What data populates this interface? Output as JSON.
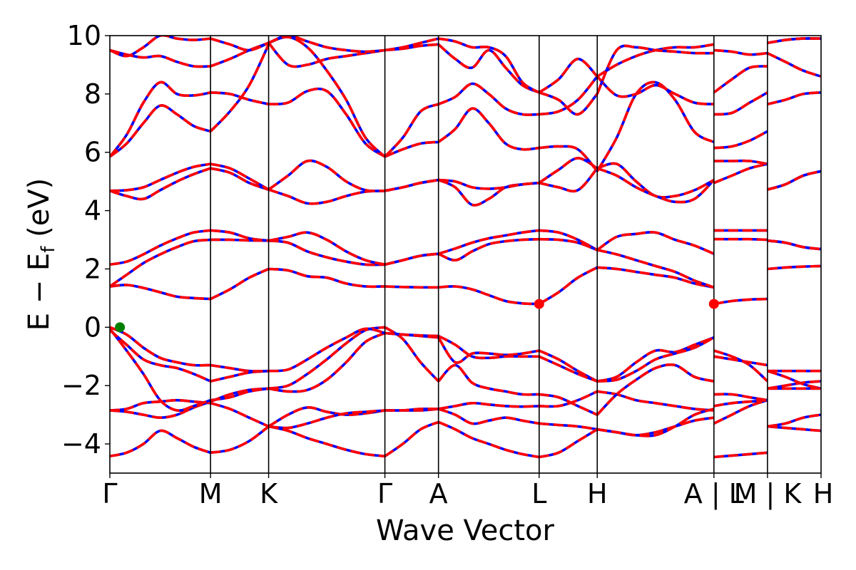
{
  "chart_data": {
    "type": "line",
    "title": "",
    "xlabel": "Wave Vector",
    "ylabel": "E − E_f (eV)",
    "ylabel_parts": {
      "main": "E − E",
      "sub": "f",
      "unit": " (eV)"
    },
    "ylim": [
      -5,
      10
    ],
    "yticks": [
      {
        "value": 10,
        "label": "10"
      },
      {
        "value": 8,
        "label": "8"
      },
      {
        "value": 6,
        "label": "6"
      },
      {
        "value": 4,
        "label": "4"
      },
      {
        "value": 2,
        "label": "2"
      },
      {
        "value": 0,
        "label": "0"
      },
      {
        "value": -2,
        "label": "−2"
      },
      {
        "value": -4,
        "label": "−4"
      }
    ],
    "kpoints": [
      {
        "label": "Γ",
        "k": 0.0
      },
      {
        "label": "M",
        "k": 1.0
      },
      {
        "label": "K",
        "k": 1.577
      },
      {
        "label": "Γ",
        "k": 2.732
      },
      {
        "label": "A",
        "k": 3.264
      },
      {
        "label": "L",
        "k": 4.264
      },
      {
        "label": "H",
        "k": 4.841
      },
      {
        "label": "A | L",
        "k": 6.0
      },
      {
        "label": "M | K",
        "k": 6.532
      },
      {
        "label": "H",
        "k": 7.064
      }
    ],
    "xlim": [
      0,
      7.064
    ],
    "series_colors": {
      "dft": "#0000ff",
      "interp": "#ff0000"
    },
    "series_style": {
      "dft": "solid",
      "interp": "dashed"
    },
    "segments": [
      {
        "k0": 0.0,
        "k1": 1.0,
        "bands": [
          [
            -4.42,
            -4.3,
            -4.0,
            -3.55,
            -3.8,
            -4.1,
            -4.3
          ],
          [
            -2.85,
            -2.8,
            -2.6,
            -2.55,
            -2.5,
            -2.55,
            -2.6
          ],
          [
            -2.85,
            -2.9,
            -3.0,
            -3.1,
            -3.0,
            -2.75,
            -2.55
          ],
          [
            -0.05,
            -0.8,
            -1.6,
            -2.5,
            -2.85,
            -2.7,
            -2.5
          ],
          [
            -0.1,
            -0.6,
            -1.1,
            -1.3,
            -1.4,
            -1.6,
            -1.85
          ],
          [
            0.0,
            -0.25,
            -0.7,
            -1.05,
            -1.2,
            -1.3,
            -1.3
          ],
          [
            1.4,
            1.45,
            1.35,
            1.2,
            1.05,
            1.0,
            0.97
          ],
          [
            1.4,
            1.8,
            2.2,
            2.5,
            2.75,
            2.95,
            3.0
          ],
          [
            2.15,
            2.25,
            2.5,
            2.8,
            3.05,
            3.25,
            3.32
          ],
          [
            4.68,
            4.5,
            4.4,
            4.7,
            5.0,
            5.25,
            5.45
          ],
          [
            4.68,
            4.7,
            4.8,
            5.05,
            5.3,
            5.5,
            5.6
          ],
          [
            5.85,
            6.3,
            7.0,
            7.6,
            7.3,
            6.9,
            6.72
          ],
          [
            5.85,
            6.6,
            7.7,
            8.4,
            8.0,
            7.95,
            8.05
          ],
          [
            9.5,
            9.35,
            9.25,
            9.3,
            9.1,
            8.95,
            8.95
          ],
          [
            9.5,
            9.3,
            9.6,
            10.0,
            9.9,
            9.85,
            9.9
          ]
        ]
      },
      {
        "k0": 1.0,
        "k1": 1.577,
        "bands": [
          [
            -4.3,
            -4.2,
            -3.9,
            -3.4
          ],
          [
            -2.6,
            -2.8,
            -3.1,
            -3.4
          ],
          [
            -2.55,
            -2.3,
            -2.15,
            -2.1
          ],
          [
            -2.5,
            -2.4,
            -2.2,
            -2.1
          ],
          [
            -1.85,
            -1.7,
            -1.55,
            -1.5
          ],
          [
            -1.3,
            -1.4,
            -1.5,
            -1.5
          ],
          [
            0.97,
            1.3,
            1.7,
            2.0
          ],
          [
            3.0,
            3.0,
            2.98,
            2.97
          ],
          [
            3.32,
            3.25,
            3.05,
            2.97
          ],
          [
            5.45,
            5.3,
            4.95,
            4.72
          ],
          [
            5.6,
            5.45,
            5.1,
            4.72
          ],
          [
            6.72,
            7.4,
            8.3,
            9.7
          ],
          [
            8.05,
            8.0,
            7.8,
            7.65
          ],
          [
            8.95,
            9.2,
            9.5,
            9.75
          ],
          [
            9.9,
            9.7,
            9.5,
            9.75
          ]
        ]
      },
      {
        "k0": 1.577,
        "k1": 2.732,
        "bands": [
          [
            -3.4,
            -3.55,
            -3.8,
            -4.0,
            -4.2,
            -4.35,
            -4.42
          ],
          [
            -3.4,
            -3.0,
            -2.75,
            -2.9,
            -3.0,
            -2.95,
            -2.85
          ],
          [
            -3.4,
            -3.45,
            -3.3,
            -3.1,
            -2.95,
            -2.9,
            -2.85
          ],
          [
            -2.1,
            -2.2,
            -2.15,
            -1.8,
            -1.2,
            -0.5,
            -0.2
          ],
          [
            -2.1,
            -2.0,
            -1.6,
            -1.1,
            -0.55,
            -0.1,
            0.0
          ],
          [
            -1.5,
            -1.45,
            -1.1,
            -0.7,
            -0.35,
            -0.05,
            -0.2
          ],
          [
            2.0,
            1.95,
            1.75,
            1.7,
            1.5,
            1.4,
            1.4
          ],
          [
            2.97,
            2.9,
            2.6,
            2.4,
            2.25,
            2.15,
            2.15
          ],
          [
            2.97,
            3.1,
            3.25,
            3.0,
            2.6,
            2.3,
            2.15
          ],
          [
            4.72,
            4.5,
            4.25,
            4.3,
            4.5,
            4.65,
            4.68
          ],
          [
            4.72,
            5.2,
            5.7,
            5.5,
            5.0,
            4.7,
            4.68
          ],
          [
            7.65,
            7.7,
            8.1,
            8.1,
            7.3,
            6.3,
            5.85
          ],
          [
            9.75,
            9.95,
            9.6,
            8.8,
            7.8,
            6.5,
            5.85
          ],
          [
            9.75,
            9.0,
            9.0,
            9.2,
            9.3,
            9.4,
            9.5
          ],
          [
            9.75,
            10.0,
            9.8,
            9.6,
            9.5,
            9.45,
            9.5
          ]
        ]
      },
      {
        "k0": 2.732,
        "k1": 3.264,
        "bands": [
          [
            -2.85,
            -2.85,
            -2.85,
            -2.8
          ],
          [
            -2.85,
            -2.85,
            -2.8,
            -2.8
          ],
          [
            -4.42,
            -4.0,
            -3.5,
            -3.25
          ],
          [
            -0.2,
            -0.25,
            -0.3,
            -0.35
          ],
          [
            0.0,
            -0.4,
            -1.2,
            -1.85
          ],
          [
            -0.2,
            -0.25,
            -0.28,
            -0.3
          ],
          [
            1.4,
            1.38,
            1.37,
            1.37
          ],
          [
            2.15,
            2.3,
            2.45,
            2.52
          ],
          [
            2.15,
            2.3,
            2.45,
            2.52
          ],
          [
            4.68,
            4.8,
            4.95,
            5.05
          ],
          [
            4.68,
            4.8,
            4.95,
            5.05
          ],
          [
            5.85,
            6.1,
            6.3,
            6.35
          ],
          [
            5.85,
            6.5,
            7.4,
            7.65
          ],
          [
            9.5,
            9.55,
            9.65,
            9.7
          ],
          [
            9.5,
            9.6,
            9.75,
            9.9
          ]
        ]
      },
      {
        "k0": 3.264,
        "k1": 4.264,
        "bands": [
          [
            -2.8,
            -2.7,
            -2.6,
            -2.65,
            -2.7,
            -2.72,
            -2.7
          ],
          [
            -2.8,
            -3.0,
            -3.3,
            -3.2,
            -3.1,
            -3.2,
            -3.3
          ],
          [
            -3.25,
            -3.5,
            -3.8,
            -4.0,
            -4.2,
            -4.35,
            -4.45
          ],
          [
            -0.35,
            -1.2,
            -0.9,
            -0.9,
            -0.95,
            -0.9,
            -0.8
          ],
          [
            -1.85,
            -1.3,
            -1.9,
            -2.1,
            -2.2,
            -2.3,
            -2.3
          ],
          [
            -0.3,
            -0.6,
            -1.0,
            -1.05,
            -1.0,
            -1.0,
            -1.0
          ],
          [
            1.37,
            1.4,
            1.3,
            1.1,
            0.9,
            0.82,
            0.8
          ],
          [
            2.52,
            2.7,
            2.9,
            3.05,
            3.15,
            3.25,
            3.32
          ],
          [
            2.52,
            2.3,
            2.6,
            2.85,
            2.95,
            3.0,
            3.02
          ],
          [
            5.05,
            4.8,
            4.2,
            4.4,
            4.8,
            4.9,
            4.95
          ],
          [
            5.05,
            5.0,
            4.8,
            4.75,
            4.8,
            4.9,
            4.95
          ],
          [
            6.35,
            6.8,
            7.5,
            7.0,
            6.3,
            6.1,
            6.15
          ],
          [
            7.65,
            7.9,
            8.35,
            8.0,
            7.5,
            7.3,
            7.3
          ],
          [
            9.7,
            9.2,
            8.9,
            9.5,
            8.9,
            8.3,
            8.05
          ],
          [
            9.9,
            9.8,
            9.6,
            9.6,
            9.3,
            8.4,
            8.05
          ]
        ]
      },
      {
        "k0": 4.264,
        "k1": 4.841,
        "bands": [
          [
            -2.7,
            -2.7,
            -2.5,
            -2.2
          ],
          [
            -3.3,
            -3.35,
            -3.4,
            -3.5
          ],
          [
            -4.45,
            -4.3,
            -3.9,
            -3.5
          ],
          [
            -0.8,
            -1.1,
            -1.5,
            -1.85
          ],
          [
            -2.3,
            -2.4,
            -2.7,
            -3.0
          ],
          [
            -1.0,
            -1.3,
            -1.6,
            -1.85
          ],
          [
            0.8,
            1.2,
            1.7,
            2.05
          ],
          [
            3.32,
            3.25,
            3.0,
            2.65
          ],
          [
            3.02,
            3.0,
            2.9,
            2.65
          ],
          [
            4.95,
            4.8,
            4.7,
            5.45
          ],
          [
            4.95,
            5.4,
            5.8,
            5.45
          ],
          [
            6.15,
            6.2,
            6.1,
            5.35
          ],
          [
            7.3,
            7.4,
            7.8,
            8.6
          ],
          [
            8.05,
            8.5,
            9.2,
            8.6
          ],
          [
            8.05,
            7.8,
            7.3,
            8.0
          ]
        ]
      },
      {
        "k0": 4.841,
        "k1": 6.0,
        "bands": [
          [
            -2.2,
            -2.3,
            -2.5,
            -2.6,
            -2.7,
            -2.8,
            -2.85
          ],
          [
            -3.5,
            -3.6,
            -3.7,
            -3.6,
            -3.4,
            -3.2,
            -3.1
          ],
          [
            -3.5,
            -3.6,
            -3.7,
            -3.7,
            -3.4,
            -3.0,
            -2.8
          ],
          [
            -1.85,
            -1.7,
            -1.2,
            -0.8,
            -0.85,
            -0.6,
            -0.35
          ],
          [
            -3.0,
            -2.3,
            -1.8,
            -1.4,
            -1.3,
            -1.7,
            -1.85
          ],
          [
            -1.85,
            -1.8,
            -1.5,
            -1.1,
            -0.9,
            -0.7,
            -0.35
          ],
          [
            2.05,
            2.0,
            1.9,
            1.8,
            1.7,
            1.5,
            1.37
          ],
          [
            2.65,
            3.1,
            3.2,
            3.25,
            3.0,
            2.8,
            2.52
          ],
          [
            2.65,
            2.5,
            2.3,
            2.1,
            1.9,
            1.6,
            1.37
          ],
          [
            5.45,
            5.6,
            5.0,
            4.5,
            4.5,
            4.7,
            5.05
          ],
          [
            5.45,
            5.2,
            4.8,
            4.5,
            4.3,
            4.4,
            5.05
          ],
          [
            5.35,
            6.5,
            8.0,
            8.4,
            7.8,
            6.7,
            6.35
          ],
          [
            8.6,
            7.95,
            8.0,
            8.3,
            8.0,
            7.7,
            7.65
          ],
          [
            8.6,
            9.0,
            9.3,
            9.5,
            9.6,
            9.6,
            9.7
          ],
          [
            8.0,
            9.5,
            9.6,
            9.5,
            9.45,
            9.4,
            9.4
          ]
        ]
      },
      {
        "k0": 6.0,
        "k1": 6.532,
        "bands": [
          [
            -4.45,
            -4.4,
            -4.35,
            -4.3
          ],
          [
            -3.3,
            -3.0,
            -2.7,
            -2.5
          ],
          [
            -2.7,
            -2.6,
            -2.55,
            -2.5
          ],
          [
            -0.8,
            -1.0,
            -1.3,
            -1.85
          ],
          [
            -2.3,
            -2.3,
            -2.4,
            -2.5
          ],
          [
            -1.0,
            -1.1,
            -1.2,
            -1.3
          ],
          [
            0.8,
            0.9,
            0.95,
            0.97
          ],
          [
            3.02,
            3.02,
            3.02,
            3.0
          ],
          [
            3.32,
            3.32,
            3.32,
            3.32
          ],
          [
            4.95,
            5.2,
            5.45,
            5.6
          ],
          [
            5.7,
            5.7,
            5.7,
            5.6
          ],
          [
            6.15,
            6.2,
            6.4,
            6.72
          ],
          [
            7.3,
            7.35,
            7.7,
            8.05
          ],
          [
            8.05,
            8.5,
            8.9,
            8.95
          ],
          [
            9.5,
            9.45,
            9.35,
            9.4
          ]
        ]
      },
      {
        "k0": 6.532,
        "k1": 7.064,
        "bands": [
          [
            -3.4,
            -3.45,
            -3.5,
            -3.55
          ],
          [
            -3.4,
            -3.3,
            -3.1,
            -3.0
          ],
          [
            -2.1,
            -2.0,
            -1.9,
            -1.85
          ],
          [
            -1.5,
            -1.7,
            -1.95,
            -2.1
          ],
          [
            -2.1,
            -2.1,
            -2.1,
            -2.1
          ],
          [
            -1.5,
            -1.5,
            -1.5,
            -1.5
          ],
          [
            2.0,
            2.05,
            2.08,
            2.1
          ],
          [
            2.97,
            2.9,
            2.75,
            2.68
          ],
          [
            2.97,
            2.9,
            2.75,
            2.68
          ],
          [
            4.72,
            4.9,
            5.2,
            5.35
          ],
          [
            4.72,
            4.9,
            5.2,
            5.35
          ],
          [
            7.65,
            7.8,
            8.0,
            8.05
          ],
          [
            9.4,
            9.1,
            8.8,
            8.6
          ],
          [
            9.75,
            9.85,
            9.9,
            9.9
          ],
          [
            9.75,
            9.85,
            9.9,
            9.9
          ]
        ]
      }
    ],
    "markers": [
      {
        "name": "vbm-marker",
        "k": 0.1,
        "y": 0.0,
        "color": "#008000"
      },
      {
        "name": "cbm-marker-l",
        "k": 4.264,
        "y": 0.8,
        "color": "#ff0000"
      },
      {
        "name": "cbm-marker-al",
        "k": 6.0,
        "y": 0.8,
        "color": "#ff0000"
      }
    ]
  }
}
